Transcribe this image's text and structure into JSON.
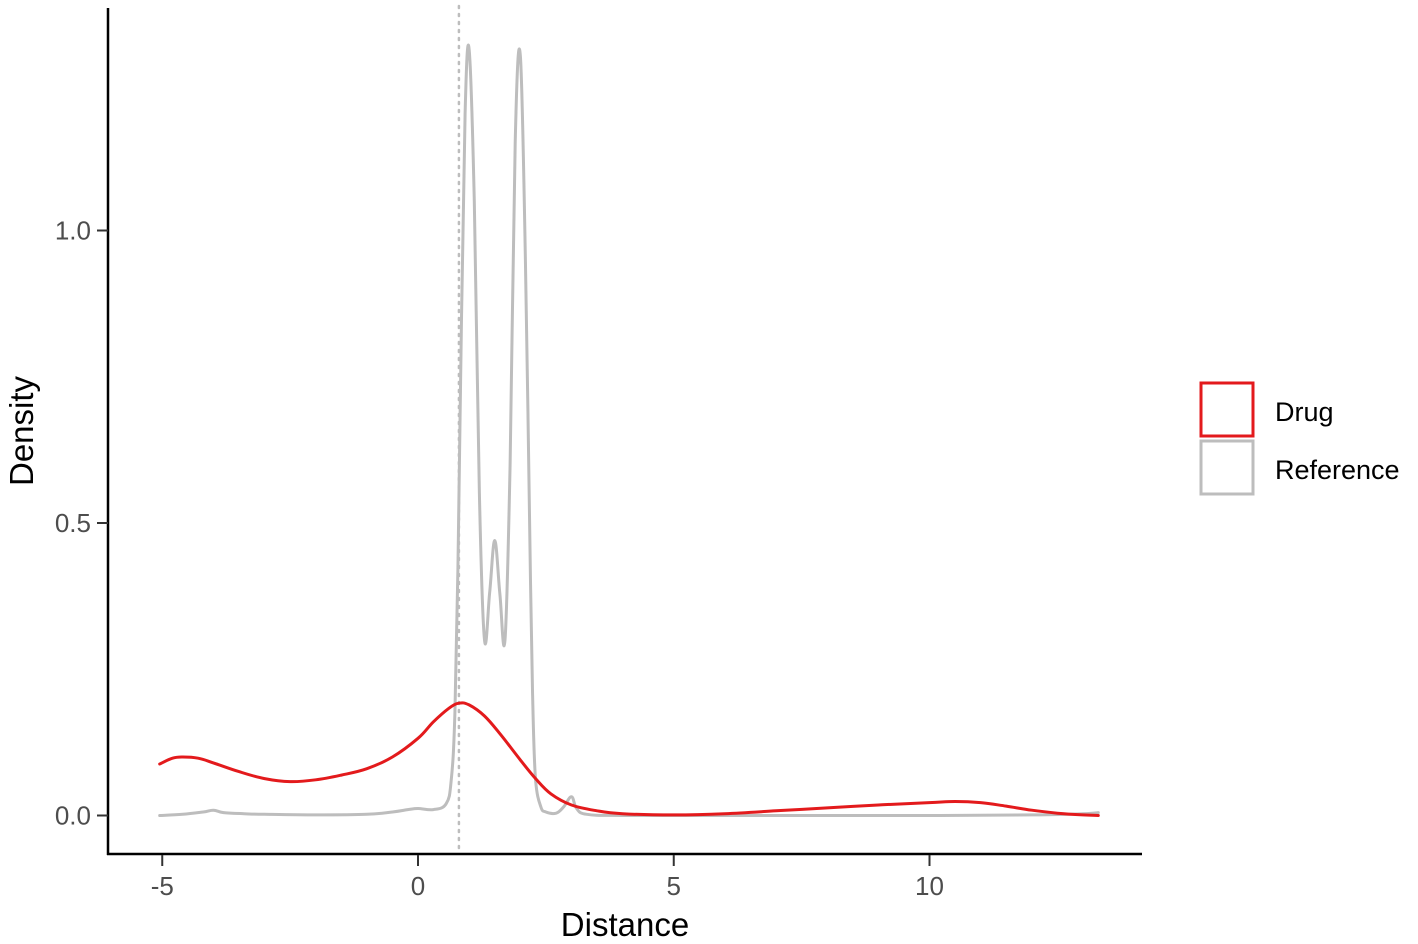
{
  "chart_data": {
    "type": "line",
    "title": "",
    "xlabel": "Distance",
    "ylabel": "Density",
    "xlim": [
      -6.0,
      14.0
    ],
    "ylim": [
      -0.065,
      1.38
    ],
    "x_ticks": [
      -5,
      0,
      5,
      10
    ],
    "x_tick_labels": [
      "-5",
      "0",
      "5",
      "10"
    ],
    "y_ticks": [
      0.0,
      0.5,
      1.0
    ],
    "y_tick_labels": [
      "0.0",
      "0.5",
      "1.0"
    ],
    "grid": false,
    "legend_position": "right",
    "reference_line": {
      "x": 0.8,
      "style": "dotted",
      "color": "#bdbdbd"
    },
    "series": [
      {
        "name": "Drug",
        "color": "#e31a1c",
        "x": [
          -5.05,
          -4.8,
          -4.6,
          -4.3,
          -4.0,
          -3.5,
          -3.0,
          -2.5,
          -2.0,
          -1.5,
          -1.0,
          -0.5,
          0.0,
          0.3,
          0.6,
          0.8,
          1.0,
          1.3,
          1.6,
          2.0,
          2.3,
          2.6,
          3.0,
          3.5,
          4.0,
          5.0,
          6.0,
          7.0,
          8.0,
          9.0,
          10.0,
          10.5,
          11.0,
          11.5,
          12.0,
          12.5,
          13.0,
          13.3
        ],
        "y": [
          0.088,
          0.098,
          0.1,
          0.098,
          0.09,
          0.075,
          0.063,
          0.058,
          0.061,
          0.069,
          0.08,
          0.1,
          0.132,
          0.16,
          0.183,
          0.192,
          0.189,
          0.17,
          0.14,
          0.095,
          0.063,
          0.037,
          0.018,
          0.008,
          0.003,
          0.001,
          0.003,
          0.008,
          0.013,
          0.018,
          0.022,
          0.024,
          0.022,
          0.016,
          0.009,
          0.004,
          0.001,
          0.0
        ]
      },
      {
        "name": "Reference",
        "color": "#bdbdbd",
        "x": [
          -5.05,
          -4.6,
          -4.2,
          -4.0,
          -3.8,
          -3.4,
          -3.0,
          -2.0,
          -1.0,
          -0.5,
          -0.2,
          0.0,
          0.3,
          0.55,
          0.65,
          0.72,
          0.78,
          0.85,
          0.92,
          1.0,
          1.1,
          1.2,
          1.3,
          1.4,
          1.5,
          1.6,
          1.7,
          1.8,
          1.9,
          2.0,
          2.1,
          2.2,
          2.25,
          2.3,
          2.4,
          2.5,
          2.7,
          2.85,
          3.0,
          3.1,
          3.3,
          4.0,
          6.0,
          8.0,
          10.0,
          12.0,
          13.0,
          13.3
        ],
        "y": [
          0.0,
          0.002,
          0.006,
          0.009,
          0.005,
          0.003,
          0.002,
          0.001,
          0.002,
          0.006,
          0.01,
          0.012,
          0.01,
          0.02,
          0.06,
          0.17,
          0.42,
          0.85,
          1.2,
          1.31,
          1.05,
          0.55,
          0.3,
          0.38,
          0.47,
          0.38,
          0.3,
          0.6,
          1.15,
          1.3,
          0.95,
          0.4,
          0.17,
          0.06,
          0.015,
          0.006,
          0.004,
          0.015,
          0.032,
          0.012,
          0.002,
          0.0,
          0.0,
          0.0,
          0.0,
          0.001,
          0.003,
          0.005
        ]
      }
    ]
  }
}
